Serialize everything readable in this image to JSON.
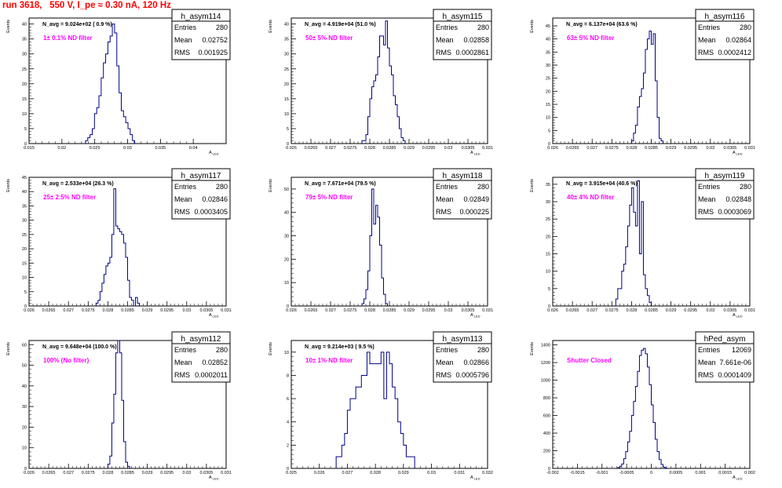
{
  "run_header": "run 3618,   550 V, I_pe ≈ 0.30 nA, 120 Hz",
  "colors": {
    "hist_line": "#00008b",
    "annotation": "#ff00ff",
    "header": "#ff0000",
    "frame": "#000000"
  },
  "stats_labels": {
    "entries": "Entries",
    "mean": "Mean",
    "rms": "RMS"
  },
  "chart_data": [
    {
      "type": "bar",
      "title": "h_asym114",
      "ylabel": "Events",
      "xlabel": "A_LED",
      "xlim": [
        0.015,
        0.045
      ],
      "ylim": [
        0,
        42
      ],
      "xticks": [
        0.015,
        0.02,
        0.025,
        0.03,
        0.035,
        0.04
      ],
      "xtick_labels": [
        "0.015",
        "0.02",
        "0.025",
        "0.03",
        "0.035",
        "0.04"
      ],
      "yticks": [
        0,
        5,
        10,
        15,
        20,
        25,
        30,
        35,
        40
      ],
      "navg": "N_avg = 9.024e+02 ( 0.9 %)",
      "filter": "1± 0.1% ND filter",
      "stats": {
        "entries": "280",
        "mean": "0.02752",
        "rms": "0.001925"
      },
      "bin_start": 0.0236,
      "bin_width": 0.00034,
      "values": [
        1,
        2,
        3,
        5,
        10,
        12,
        16,
        22,
        27,
        30,
        34,
        36,
        40,
        37,
        26,
        17,
        11,
        9,
        7,
        5,
        3,
        1
      ]
    },
    {
      "type": "bar",
      "title": "h_asym115",
      "ylabel": "Events",
      "xlabel": "A_LED",
      "xlim": [
        0.026,
        0.031
      ],
      "ylim": [
        0,
        42
      ],
      "xticks": [
        0.026,
        0.0265,
        0.027,
        0.0275,
        0.028,
        0.0285,
        0.029,
        0.0295,
        0.03,
        0.0305,
        0.031
      ],
      "xtick_labels": [
        "0.026",
        "0.0265",
        "0.027",
        "0.0275",
        "0.028",
        "0.0285",
        "0.029",
        "0.0295",
        "0.03",
        "0.0305",
        "0.031"
      ],
      "yticks": [
        0,
        5,
        10,
        15,
        20,
        25,
        30,
        35,
        40
      ],
      "navg": "N_avg = 4.919e+04 (51.0 %)",
      "filter": "50± 5% ND filter",
      "stats": {
        "entries": "280",
        "mean": "0.02858",
        "rms": "0.0002861"
      },
      "bin_start": 0.0278,
      "bin_width": 5e-05,
      "values": [
        1,
        1,
        3,
        9,
        15,
        19,
        21,
        23,
        29,
        36,
        36,
        33,
        41,
        32,
        26,
        23,
        16,
        13,
        9,
        5,
        2,
        1
      ]
    },
    {
      "type": "bar",
      "title": "h_asym116",
      "ylabel": "Events",
      "xlabel": "A_LED",
      "xlim": [
        0.026,
        0.031
      ],
      "ylim": [
        0,
        48
      ],
      "xticks": [
        0.026,
        0.0265,
        0.027,
        0.0275,
        0.028,
        0.0285,
        0.029,
        0.0295,
        0.03,
        0.0305,
        0.031
      ],
      "xtick_labels": [
        "0.026",
        "0.0265",
        "0.027",
        "0.0275",
        "0.028",
        "0.0285",
        "0.029",
        "0.0295",
        "0.03",
        "0.0305",
        "0.031"
      ],
      "yticks": [
        0,
        5,
        10,
        15,
        20,
        25,
        30,
        35,
        40,
        45
      ],
      "navg": "N_avg = 6.137e+04 (63.6 %)",
      "filter": "63± 5% ND filter",
      "stats": {
        "entries": "280",
        "mean": "0.02864",
        "rms": "0.0002412"
      },
      "bin_start": 0.028,
      "bin_width": 5e-05,
      "values": [
        1,
        4,
        7,
        14,
        18,
        21,
        27,
        36,
        40,
        43,
        38,
        42,
        24,
        10,
        2,
        1
      ]
    },
    {
      "type": "bar",
      "title": "h_asym117",
      "ylabel": "Events",
      "xlabel": "A_LED",
      "xlim": [
        0.026,
        0.031
      ],
      "ylim": [
        0,
        45
      ],
      "xticks": [
        0.026,
        0.0265,
        0.027,
        0.0275,
        0.028,
        0.0285,
        0.029,
        0.0295,
        0.03,
        0.0305,
        0.031
      ],
      "xtick_labels": [
        "0.026",
        "0.0265",
        "0.027",
        "0.0275",
        "0.028",
        "0.0285",
        "0.029",
        "0.0295",
        "0.03",
        "0.0305",
        "0.031"
      ],
      "yticks": [
        0,
        5,
        10,
        15,
        20,
        25,
        30,
        35,
        40,
        45
      ],
      "navg": "N_avg = 2.533e+04 (26.3 %)",
      "filter": "25± 2.5% ND filter",
      "stats": {
        "entries": "280",
        "mean": "0.02846",
        "rms": "0.0003405"
      },
      "bin_start": 0.0277,
      "bin_width": 5e-05,
      "values": [
        1,
        2,
        5,
        8,
        11,
        14,
        15,
        17,
        25,
        41,
        28,
        27,
        26,
        25,
        22,
        17,
        9,
        3,
        2,
        0,
        3,
        1
      ]
    },
    {
      "type": "bar",
      "title": "h_asym118",
      "ylabel": "Events",
      "xlabel": "A_LED",
      "xlim": [
        0.026,
        0.031
      ],
      "ylim": [
        0,
        55
      ],
      "xticks": [
        0.026,
        0.0265,
        0.027,
        0.0275,
        0.028,
        0.0285,
        0.029,
        0.0295,
        0.03,
        0.0305,
        0.031
      ],
      "xtick_labels": [
        "0.026",
        "0.0265",
        "0.027",
        "0.0275",
        "0.028",
        "0.0285",
        "0.029",
        "0.0295",
        "0.03",
        "0.0305",
        "0.031"
      ],
      "yticks": [
        0,
        10,
        20,
        30,
        40,
        50
      ],
      "navg": "N_avg = 7.671e+04 (79.5 %)",
      "filter": "79± 5% ND filter",
      "stats": {
        "entries": "280",
        "mean": "0.02849",
        "rms": "0.000225"
      },
      "bin_start": 0.0278,
      "bin_width": 5e-05,
      "values": [
        1,
        3,
        7,
        15,
        30,
        50,
        35,
        43,
        38,
        26,
        12,
        5,
        1
      ]
    },
    {
      "type": "bar",
      "title": "h_asym119",
      "ylabel": "Events",
      "xlabel": "A_LED",
      "xlim": [
        0.026,
        0.031
      ],
      "ylim": [
        0,
        37
      ],
      "xticks": [
        0.026,
        0.0265,
        0.027,
        0.0275,
        0.028,
        0.0285,
        0.029,
        0.0295,
        0.03,
        0.0305,
        0.031
      ],
      "xtick_labels": [
        "0.026",
        "0.0265",
        "0.027",
        "0.0275",
        "0.028",
        "0.0285",
        "0.029",
        "0.0295",
        "0.03",
        "0.0305",
        "0.031"
      ],
      "yticks": [
        0,
        5,
        10,
        15,
        20,
        25,
        30,
        35
      ],
      "navg": "N_avg = 3.915e+04 (40.6 %)",
      "filter": "40± 4% ND filter",
      "stats": {
        "entries": "280",
        "mean": "0.02848",
        "rms": "0.0003069"
      },
      "bin_start": 0.0276,
      "bin_width": 5e-05,
      "values": [
        2,
        5,
        5,
        10,
        12,
        17,
        23,
        29,
        34,
        27,
        23,
        36,
        15,
        30,
        9,
        5,
        3,
        1
      ]
    },
    {
      "type": "bar",
      "title": "h_asym112",
      "ylabel": "Events",
      "xlabel": "A_LED",
      "xlim": [
        0.026,
        0.031
      ],
      "ylim": [
        0,
        62
      ],
      "xticks": [
        0.026,
        0.0265,
        0.027,
        0.0275,
        0.028,
        0.0285,
        0.029,
        0.0295,
        0.03,
        0.0305,
        0.031
      ],
      "xtick_labels": [
        "0.026",
        "0.0265",
        "0.027",
        "0.0275",
        "0.028",
        "0.0285",
        "0.029",
        "0.0295",
        "0.03",
        "0.0305",
        "0.031"
      ],
      "yticks": [
        0,
        10,
        20,
        30,
        40,
        50,
        60
      ],
      "navg": "N_avg = 9.648e+04 (100.0 %)",
      "filter": "100% (No filter)",
      "stats": {
        "entries": "280",
        "mean": "0.02852",
        "rms": "0.0002011"
      },
      "bin_start": 0.028,
      "bin_width": 5e-05,
      "values": [
        2,
        6,
        22,
        36,
        56,
        65,
        56,
        33,
        13,
        3,
        1
      ]
    },
    {
      "type": "bar",
      "title": "h_asym113",
      "ylabel": "Events",
      "xlabel": "A_LED",
      "xlim": [
        0.025,
        0.032
      ],
      "ylim": [
        0,
        11
      ],
      "xticks": [
        0.025,
        0.026,
        0.027,
        0.028,
        0.029,
        0.03,
        0.031,
        0.032
      ],
      "xtick_labels": [
        "0.025",
        "0.026",
        "0.027",
        "0.028",
        "0.029",
        "0.03",
        "0.031",
        "0.032"
      ],
      "yticks": [
        0,
        2,
        4,
        6,
        8,
        10
      ],
      "navg": "N_avg = 9.214e+03 ( 9.5 %)",
      "filter": "10± 1% ND filter",
      "stats": {
        "entries": "280",
        "mean": "0.02866",
        "rms": "0.0005796"
      },
      "bin_start": 0.0266,
      "bin_width": 0.0001,
      "values": [
        1,
        1,
        2,
        3,
        5,
        6,
        6,
        7,
        7,
        8,
        8,
        10,
        9,
        9,
        9,
        9,
        10,
        6,
        10,
        9,
        7,
        6,
        4,
        3,
        2,
        1,
        1,
        1
      ]
    },
    {
      "type": "bar",
      "title": "hPed_asym",
      "ylabel": "Events",
      "xlabel": "A_LED",
      "xlim": [
        -0.002,
        0.002
      ],
      "ylim": [
        0,
        1450
      ],
      "xticks": [
        -0.002,
        -0.0015,
        -0.001,
        -0.0005,
        0,
        0.0005,
        0.001,
        0.0015,
        0.002
      ],
      "xtick_labels": [
        "-0.002",
        "-0.0015",
        "-0.001",
        "-0.0005",
        "0",
        "0.0005",
        "0.001",
        "0.0015",
        "0.002"
      ],
      "yticks": [
        0,
        200,
        400,
        600,
        800,
        1000,
        1200,
        1400
      ],
      "navg": "",
      "filter": "Shutter Closed",
      "stats": {
        "entries": "12069",
        "mean": "7.661e-06",
        "rms": "0.0001409"
      },
      "bin_start": -0.00068,
      "bin_width": 4e-05,
      "values": [
        10,
        25,
        50,
        110,
        190,
        300,
        420,
        600,
        760,
        930,
        1100,
        1280,
        1340,
        1360,
        1300,
        1150,
        950,
        720,
        520,
        330,
        190,
        100,
        45,
        15,
        5
      ]
    }
  ]
}
